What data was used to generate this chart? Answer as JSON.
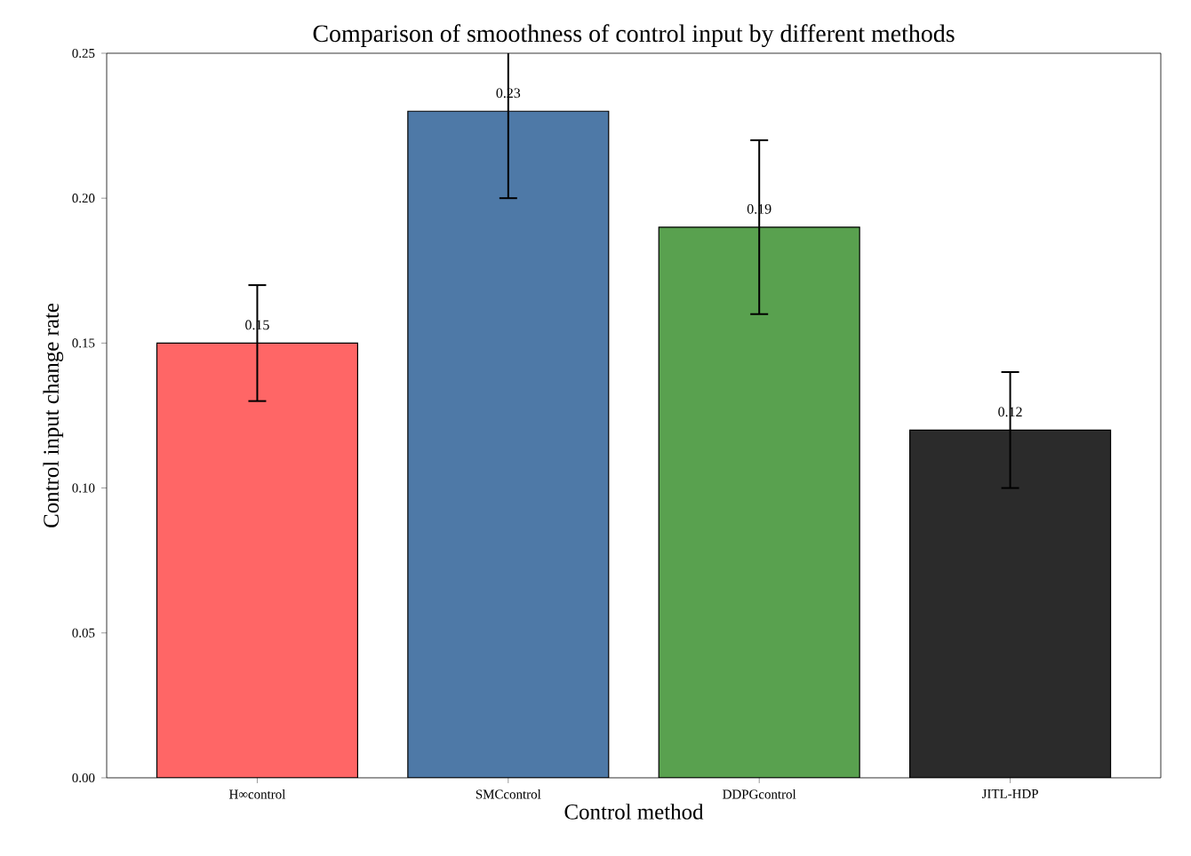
{
  "chart_data": {
    "type": "bar",
    "title": "Comparison of smoothness of control input by different methods",
    "xlabel": "Control method",
    "ylabel": "Control input change rate",
    "categories": [
      "H∞control",
      "SMCcontrol",
      "DDPGcontrol",
      "JITL-HDP"
    ],
    "values": [
      0.15,
      0.23,
      0.19,
      0.12
    ],
    "errors": [
      0.02,
      0.03,
      0.03,
      0.02
    ],
    "colors": [
      "#ff6666",
      "#4e79a7",
      "#59a14f",
      "#2b2b2b"
    ],
    "ylim": [
      0,
      0.25
    ],
    "yticks": [
      {
        "value": 0,
        "label": "0.00"
      },
      {
        "value": 0.05,
        "label": "0.05"
      },
      {
        "value": 0.1,
        "label": "0.10"
      },
      {
        "value": 0.15,
        "label": "0.15"
      },
      {
        "value": 0.2,
        "label": "0.20"
      },
      {
        "value": 0.25,
        "label": "0.25"
      }
    ],
    "data_labels": true,
    "grid": false
  }
}
